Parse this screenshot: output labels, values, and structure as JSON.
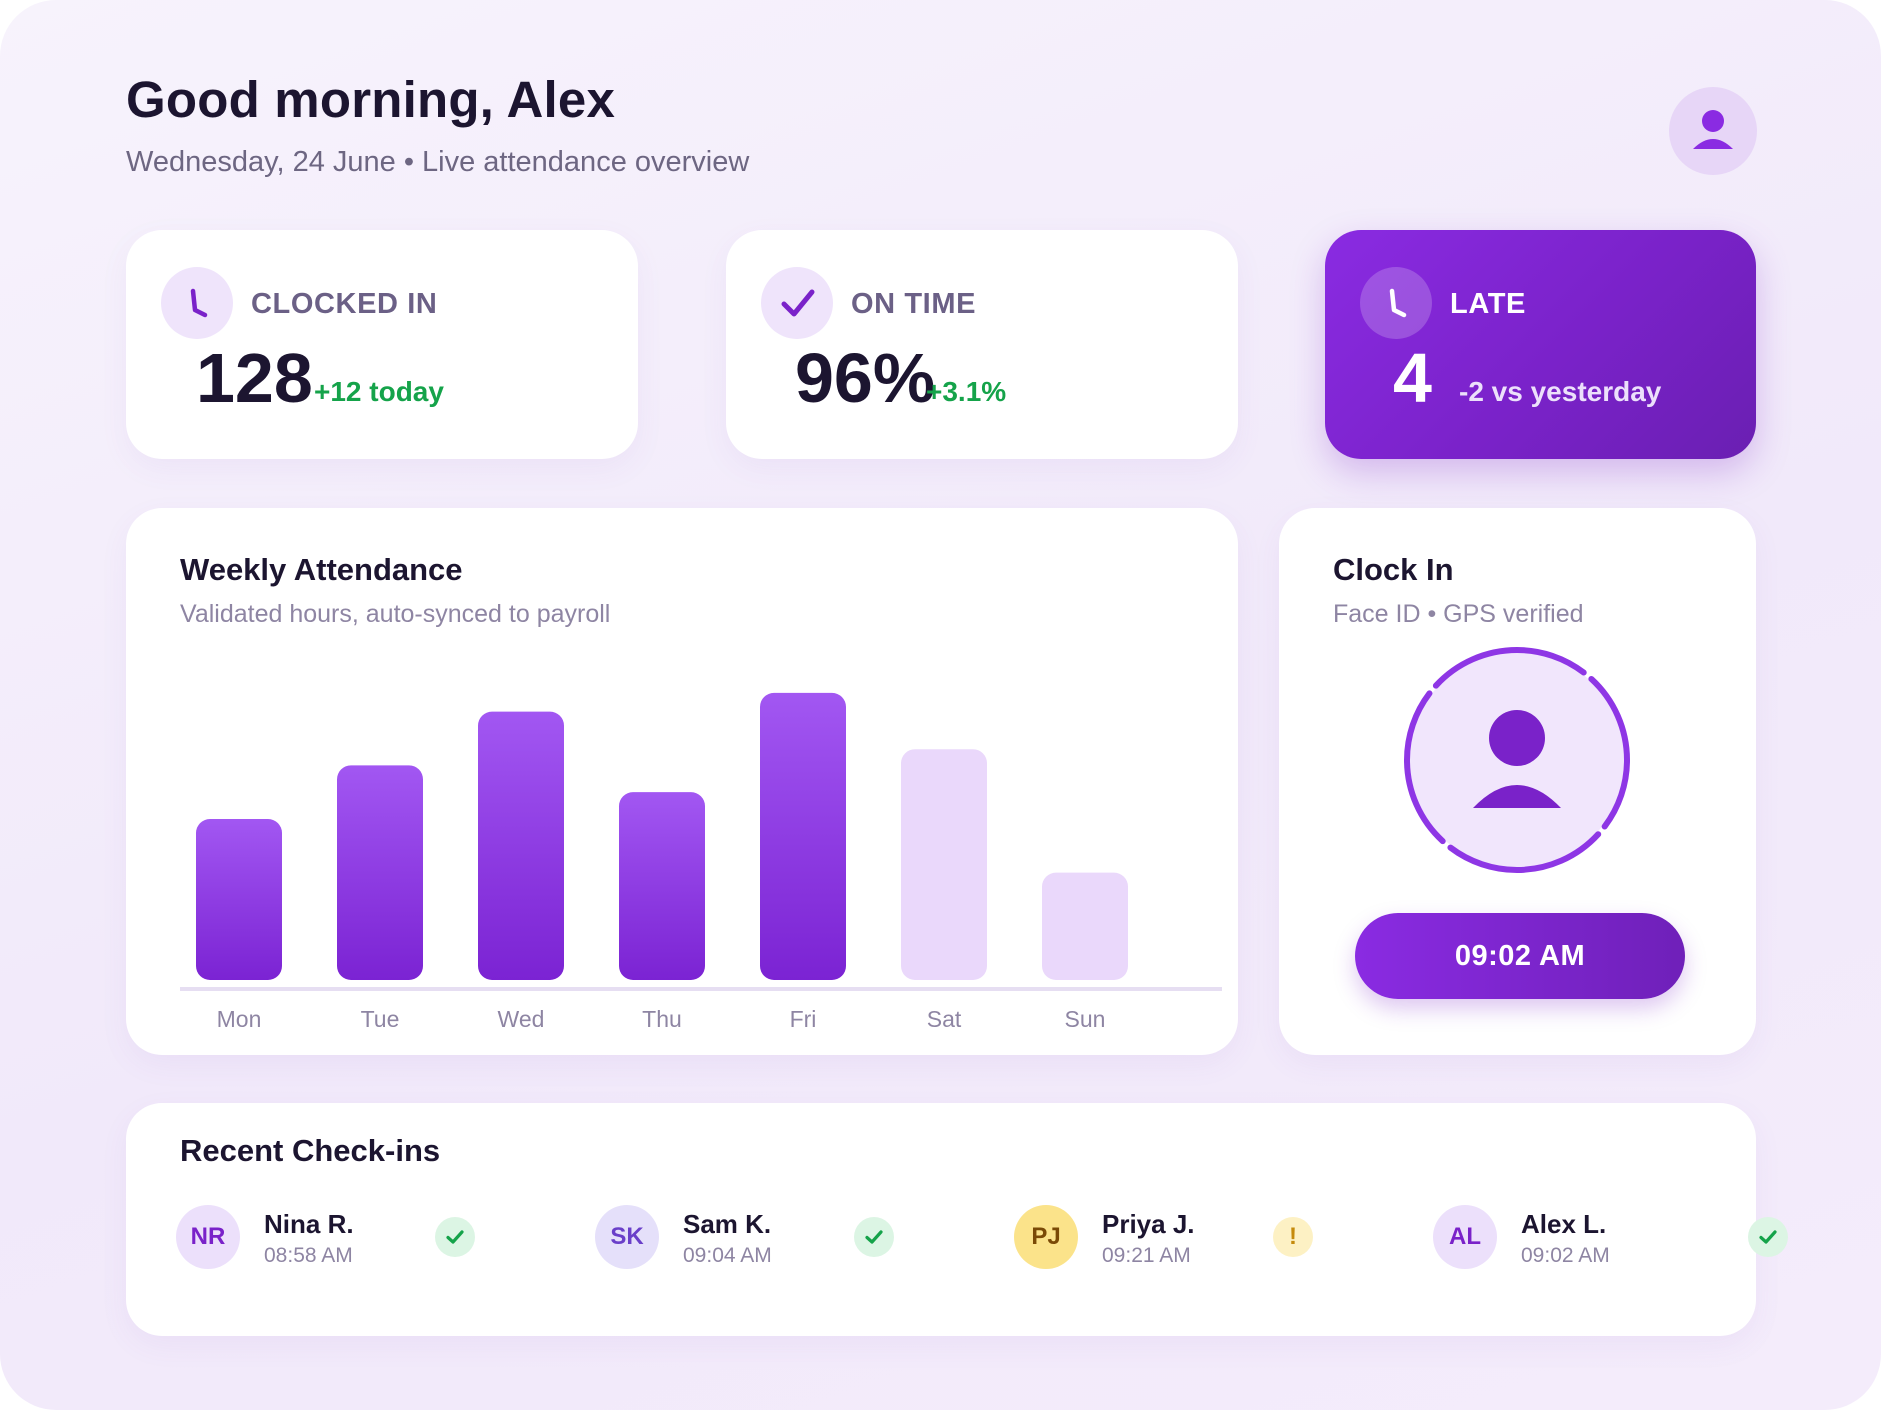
{
  "header": {
    "greeting": "Good morning, Alex",
    "subtitle": "Wednesday, 24 June • Live attendance overview",
    "avatar_icon": "user-icon"
  },
  "stats": [
    {
      "label": "CLOCKED IN",
      "value": "128",
      "delta": "+12 today",
      "icon": "clock-icon"
    },
    {
      "label": "ON TIME",
      "value": "96%",
      "delta": "+3.1%",
      "icon": "check-icon"
    },
    {
      "label": "LATE",
      "value": "4",
      "delta": "-2 vs yesterday",
      "icon": "clock-icon"
    }
  ],
  "weekly": {
    "title": "Weekly Attendance",
    "subtitle": "Validated hours, auto-synced to payroll"
  },
  "chart_data": {
    "type": "bar",
    "categories": [
      "Mon",
      "Tue",
      "Wed",
      "Thu",
      "Fri",
      "Sat",
      "Sun"
    ],
    "values": [
      6,
      8,
      10,
      7,
      10.7,
      8.6,
      4
    ],
    "highlighted": [
      true,
      true,
      true,
      true,
      true,
      false,
      false
    ],
    "ylim": [
      0,
      12
    ],
    "grid": false,
    "colors": {
      "active": "#8e36e5",
      "muted": "#ead8fb"
    }
  },
  "clock_in": {
    "title": "Clock In",
    "subtitle": "Face ID • GPS verified",
    "scanner_icon": "face-scan-icon",
    "time_button": "09:02 AM"
  },
  "recent": {
    "title": "Recent Check-ins",
    "items": [
      {
        "initials": "NR",
        "name": "Nina R.",
        "time": "08:58 AM",
        "status": "check-icon"
      },
      {
        "initials": "SK",
        "name": "Sam K.",
        "time": "09:04 AM",
        "status": "check-icon"
      },
      {
        "initials": "PJ",
        "name": "Priya J.",
        "time": "09:21 AM",
        "status": "!"
      },
      {
        "initials": "AL",
        "name": "Alex L.",
        "time": "09:02 AM",
        "status": "check-icon"
      }
    ]
  },
  "colors": {
    "accent": "#8a2be2",
    "success": "#15a34a",
    "warning": "#c58a0b"
  }
}
